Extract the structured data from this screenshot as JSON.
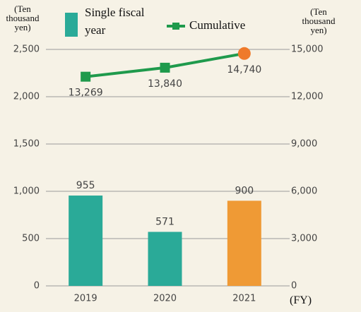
{
  "chart_data": {
    "type": "bar",
    "categories": [
      "2019",
      "2020",
      "2021"
    ],
    "series": [
      {
        "name": "Single fiscal year",
        "type": "bar",
        "color": "#2aaa98",
        "point_colors": [
          "#2aaa98",
          "#2aaa98",
          "#ef9a35"
        ],
        "values": [
          955,
          571,
          900
        ]
      },
      {
        "name": "Cumulative",
        "type": "line",
        "axis": "y2",
        "color": "#1f9a4c",
        "point_colors": [
          "#1f9a4c",
          "#1f9a4c",
          "#ef7a2a"
        ],
        "values": [
          13269,
          13840,
          14740
        ],
        "value_labels": [
          "13,269",
          "13,840",
          "14,740"
        ]
      }
    ],
    "y_label": "(Ten thousand yen)",
    "y2_label": "(Ten thousand yen)",
    "x_label": "(FY)",
    "ylim": [
      0,
      2500
    ],
    "yticks": [
      0,
      500,
      {
        "value": 1000,
        "label": "1,000"
      },
      {
        "value": 1500,
        "label": "1,500"
      },
      {
        "value": 2000,
        "label": "2,000"
      },
      {
        "value": 2500,
        "label": "2,500"
      }
    ],
    "y2lim": [
      0,
      15000
    ],
    "y2ticks": [
      0,
      {
        "value": 3000,
        "label": "3,000"
      },
      {
        "value": 6000,
        "label": "6,000"
      },
      {
        "value": 9000,
        "label": "9,000"
      },
      {
        "value": 12000,
        "label": "12,000"
      },
      {
        "value": 15000,
        "label": "15,000"
      }
    ],
    "grid": true
  }
}
